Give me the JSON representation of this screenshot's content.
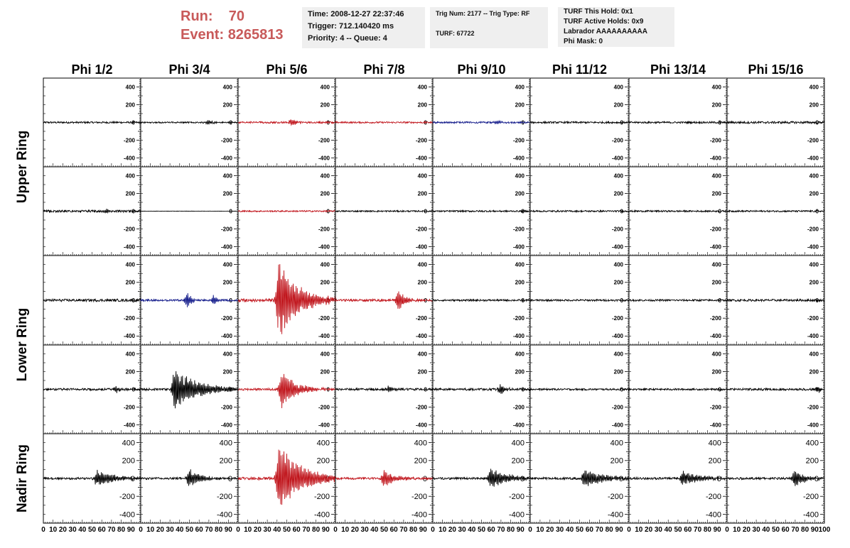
{
  "header": {
    "run_label": "Run:",
    "run_value": "70",
    "event_label": "Event:",
    "event_value": "8265813",
    "time": "Time: 2008-12-27 22:37:46",
    "trigger": "Trigger: 712.140420 ms",
    "priority": "Priority: 4 -- Queue: 4",
    "trig_num": "Trig Num: 2177 -- Trig Type: RF",
    "turf": "TURF: 67722",
    "turf_this_hold": "TURF This Hold: 0x1",
    "turf_active_holds": "TURF Active Holds: 0x9",
    "labrador": "Labrador AAAAAAAAAA",
    "phi_mask": "Phi Mask: 0"
  },
  "chart_data": {
    "type": "line",
    "columns": [
      "Phi 1/2",
      "Phi 3/4",
      "Phi 5/6",
      "Phi 7/8",
      "Phi 9/10",
      "Phi 11/12",
      "Phi 13/14",
      "Phi 15/16"
    ],
    "ring_labels": [
      "Upper Ring",
      "Lower Ring",
      "Nadir Ring"
    ],
    "xlim": [
      0,
      100
    ],
    "ylim": [
      -500,
      500
    ],
    "x_ticks": [
      0,
      10,
      20,
      30,
      40,
      50,
      60,
      70,
      80,
      90,
      100
    ],
    "y_ticks": [
      400,
      200,
      0,
      -200,
      -400
    ],
    "colors": {
      "default": "#000000",
      "red": "#c0141b",
      "blue": "#121a8a"
    },
    "panels": [
      [
        {
          "color": "default",
          "noise": 10,
          "bursts": []
        },
        {
          "color": "default",
          "noise": 8,
          "bursts": [
            {
              "center": 70,
              "width": 8,
              "amp": 30
            }
          ]
        },
        {
          "color": "red",
          "noise": 10,
          "bursts": [
            {
              "center": 55,
              "width": 12,
              "amp": 40
            }
          ]
        },
        {
          "color": "red",
          "noise": 9,
          "bursts": []
        },
        {
          "color": "blue",
          "noise": 9,
          "bursts": [
            {
              "center": 65,
              "width": 12,
              "amp": 25
            }
          ]
        },
        {
          "color": "default",
          "noise": 10,
          "bursts": []
        },
        {
          "color": "default",
          "noise": 10,
          "bursts": []
        },
        {
          "color": "default",
          "noise": 12,
          "bursts": []
        }
      ],
      [
        {
          "color": "default",
          "noise": 12,
          "bursts": [
            {
              "center": 65,
              "width": 15,
              "amp": 30
            }
          ]
        },
        {
          "color": "default",
          "noise": 2,
          "bursts": []
        },
        {
          "color": "red",
          "noise": 8,
          "bursts": []
        },
        {
          "color": "default",
          "noise": 8,
          "bursts": []
        },
        {
          "color": "default",
          "noise": 9,
          "bursts": []
        },
        {
          "color": "default",
          "noise": 9,
          "bursts": []
        },
        {
          "color": "default",
          "noise": 9,
          "bursts": []
        },
        {
          "color": "default",
          "noise": 9,
          "bursts": []
        }
      ],
      [
        {
          "color": "default",
          "noise": 14,
          "bursts": []
        },
        {
          "color": "blue",
          "noise": 10,
          "bursts": [
            {
              "center": 48,
              "width": 8,
              "amp": 100
            },
            {
              "center": 75,
              "width": 10,
              "amp": 60
            }
          ]
        },
        {
          "color": "red",
          "noise": 18,
          "bursts": [
            {
              "center": 42,
              "width": 45,
              "amp": 450
            }
          ]
        },
        {
          "color": "red",
          "noise": 12,
          "bursts": [
            {
              "center": 65,
              "width": 14,
              "amp": 130
            }
          ]
        },
        {
          "color": "default",
          "noise": 10,
          "bursts": []
        },
        {
          "color": "default",
          "noise": 10,
          "bursts": []
        },
        {
          "color": "default",
          "noise": 10,
          "bursts": []
        },
        {
          "color": "default",
          "noise": 12,
          "bursts": []
        }
      ],
      [
        {
          "color": "default",
          "noise": 12,
          "bursts": [
            {
              "center": 75,
              "width": 12,
              "amp": 35
            }
          ]
        },
        {
          "color": "default",
          "noise": 12,
          "bursts": [
            {
              "center": 35,
              "width": 50,
              "amp": 260
            }
          ]
        },
        {
          "color": "red",
          "noise": 12,
          "bursts": [
            {
              "center": 45,
              "width": 30,
              "amp": 220
            }
          ]
        },
        {
          "color": "default",
          "noise": 12,
          "bursts": [
            {
              "center": 55,
              "width": 10,
              "amp": 40
            }
          ]
        },
        {
          "color": "default",
          "noise": 12,
          "bursts": [
            {
              "center": 70,
              "width": 10,
              "amp": 60
            }
          ]
        },
        {
          "color": "default",
          "noise": 10,
          "bursts": []
        },
        {
          "color": "default",
          "noise": 10,
          "bursts": []
        },
        {
          "color": "default",
          "noise": 12,
          "bursts": [
            {
              "center": 95,
              "width": 4,
              "amp": 40
            }
          ]
        }
      ],
      [
        {
          "color": "default",
          "noise": 12,
          "bursts": [
            {
              "center": 55,
              "width": 40,
              "amp": 100
            }
          ]
        },
        {
          "color": "default",
          "noise": 12,
          "bursts": [
            {
              "center": 50,
              "width": 25,
              "amp": 110
            }
          ]
        },
        {
          "color": "red",
          "noise": 15,
          "bursts": [
            {
              "center": 42,
              "width": 50,
              "amp": 400
            }
          ]
        },
        {
          "color": "red",
          "noise": 12,
          "bursts": [
            {
              "center": 50,
              "width": 25,
              "amp": 100
            }
          ]
        },
        {
          "color": "default",
          "noise": 12,
          "bursts": [
            {
              "center": 60,
              "width": 40,
              "amp": 120
            }
          ]
        },
        {
          "color": "default",
          "noise": 12,
          "bursts": [
            {
              "center": 55,
              "width": 45,
              "amp": 100
            }
          ]
        },
        {
          "color": "default",
          "noise": 12,
          "bursts": [
            {
              "center": 55,
              "width": 40,
              "amp": 90
            }
          ]
        },
        {
          "color": "default",
          "noise": 12,
          "bursts": [
            {
              "center": 70,
              "width": 20,
              "amp": 110
            }
          ]
        }
      ]
    ]
  }
}
